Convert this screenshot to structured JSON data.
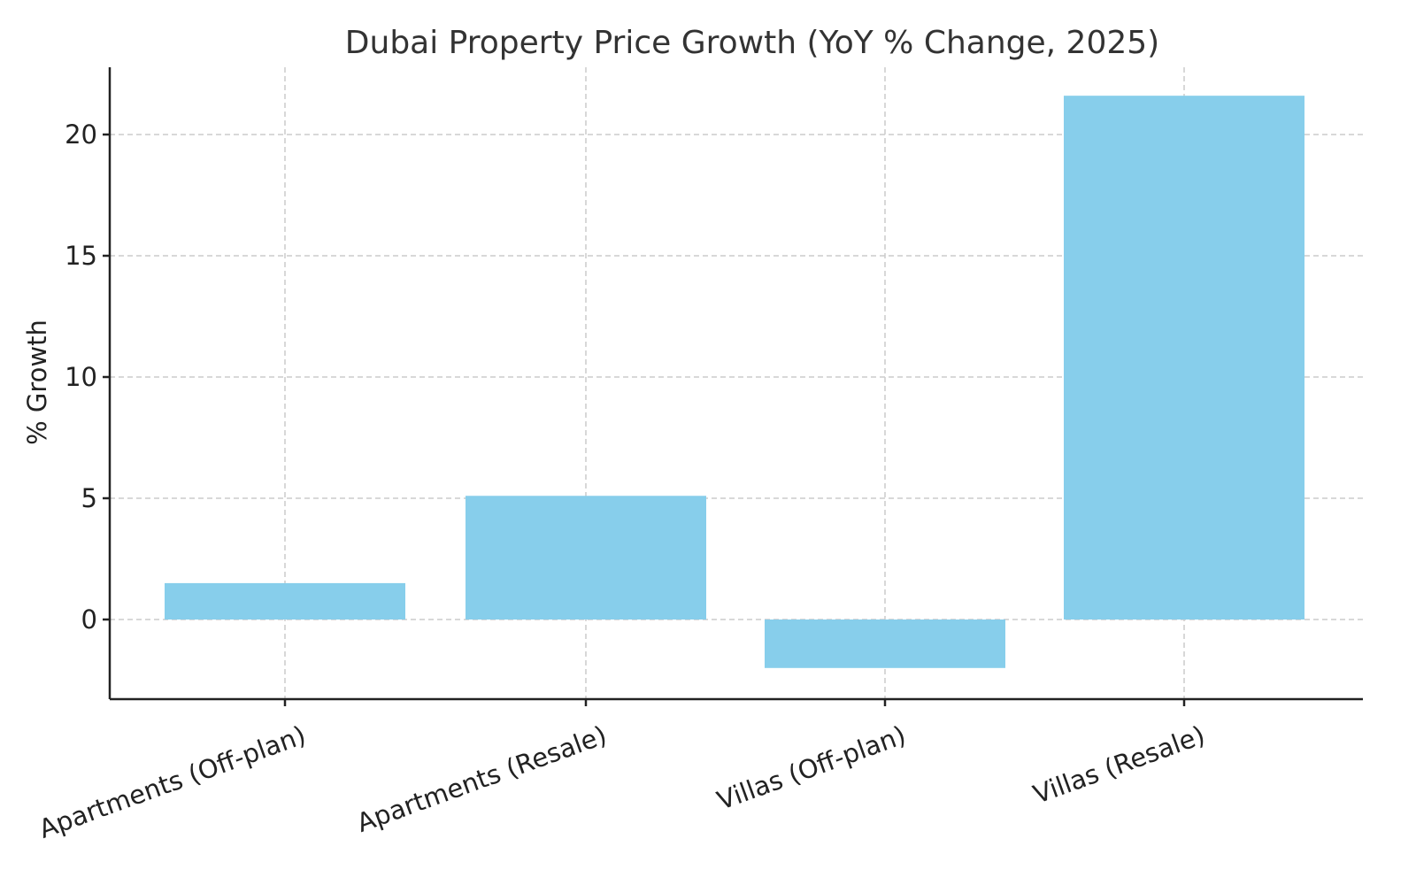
{
  "chart_data": {
    "type": "bar",
    "title": "Dubai Property Price Growth (YoY % Change, 2025)",
    "xlabel": "",
    "ylabel": "% Growth",
    "categories": [
      "Apartments (Off-plan)",
      "Apartments (Resale)",
      "Villas (Off-plan)",
      "Villas (Resale)"
    ],
    "values": [
      1.5,
      5.1,
      -2.0,
      21.6
    ],
    "ylim": [
      -3.2,
      22.8
    ],
    "yticks": [
      0,
      5,
      10,
      15,
      20
    ],
    "grid": true,
    "bar_color": "#87CEEB"
  }
}
